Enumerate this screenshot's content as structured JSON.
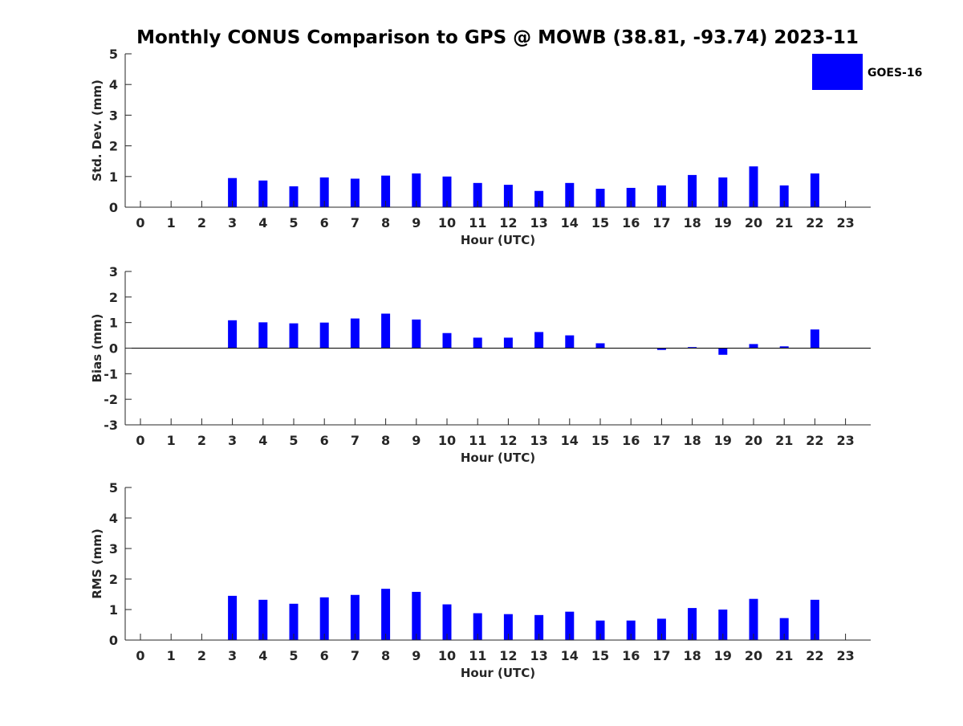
{
  "title": "Monthly CONUS Comparison to GPS @ MOWB (38.81, -93.74) 2023-11",
  "colors": {
    "bar": "#0000ff",
    "axis": "#262626",
    "background": "#ffffff"
  },
  "legend": {
    "label": "GOES-16",
    "position": "top-right"
  },
  "chart_data": [
    {
      "type": "bar",
      "name": "std-dev",
      "xlabel": "Hour (UTC)",
      "ylabel": "Std. Dev. (mm)",
      "categories": [
        "0",
        "1",
        "2",
        "3",
        "4",
        "5",
        "6",
        "7",
        "8",
        "9",
        "10",
        "11",
        "12",
        "13",
        "14",
        "15",
        "16",
        "17",
        "18",
        "19",
        "20",
        "21",
        "22",
        "23"
      ],
      "ylim": [
        0,
        5
      ],
      "yticks": [
        "0",
        "1",
        "2",
        "3",
        "4",
        "5"
      ],
      "series": [
        {
          "name": "GOES-16",
          "values": [
            null,
            null,
            null,
            0.95,
            0.87,
            0.68,
            0.97,
            0.93,
            1.03,
            1.1,
            1.0,
            0.79,
            0.73,
            0.53,
            0.79,
            0.6,
            0.63,
            0.71,
            1.05,
            0.97,
            1.33,
            0.71,
            1.1,
            null
          ]
        }
      ],
      "grid": false
    },
    {
      "type": "bar",
      "name": "bias",
      "xlabel": "Hour (UTC)",
      "ylabel": "Bias (mm)",
      "categories": [
        "0",
        "1",
        "2",
        "3",
        "4",
        "5",
        "6",
        "7",
        "8",
        "9",
        "10",
        "11",
        "12",
        "13",
        "14",
        "15",
        "16",
        "17",
        "18",
        "19",
        "20",
        "21",
        "22",
        "23"
      ],
      "ylim": [
        -3,
        3
      ],
      "yticks": [
        "-3",
        "-2",
        "-1",
        "0",
        "1",
        "2",
        "3"
      ],
      "series": [
        {
          "name": "GOES-16",
          "values": [
            null,
            null,
            null,
            1.09,
            1.01,
            0.97,
            1.0,
            1.16,
            1.35,
            1.12,
            0.59,
            0.41,
            0.41,
            0.63,
            0.5,
            0.19,
            0.01,
            -0.07,
            0.04,
            -0.26,
            0.16,
            0.07,
            0.73,
            null
          ]
        }
      ],
      "grid": false
    },
    {
      "type": "bar",
      "name": "rms",
      "xlabel": "Hour (UTC)",
      "ylabel": "RMS (mm)",
      "categories": [
        "0",
        "1",
        "2",
        "3",
        "4",
        "5",
        "6",
        "7",
        "8",
        "9",
        "10",
        "11",
        "12",
        "13",
        "14",
        "15",
        "16",
        "17",
        "18",
        "19",
        "20",
        "21",
        "22",
        "23"
      ],
      "ylim": [
        0,
        5
      ],
      "yticks": [
        "0",
        "1",
        "2",
        "3",
        "4",
        "5"
      ],
      "series": [
        {
          "name": "GOES-16",
          "values": [
            null,
            null,
            null,
            1.45,
            1.32,
            1.19,
            1.4,
            1.48,
            1.68,
            1.58,
            1.17,
            0.88,
            0.85,
            0.82,
            0.93,
            0.64,
            0.64,
            0.7,
            1.05,
            1.0,
            1.35,
            0.72,
            1.32,
            null
          ]
        }
      ],
      "grid": false
    }
  ]
}
